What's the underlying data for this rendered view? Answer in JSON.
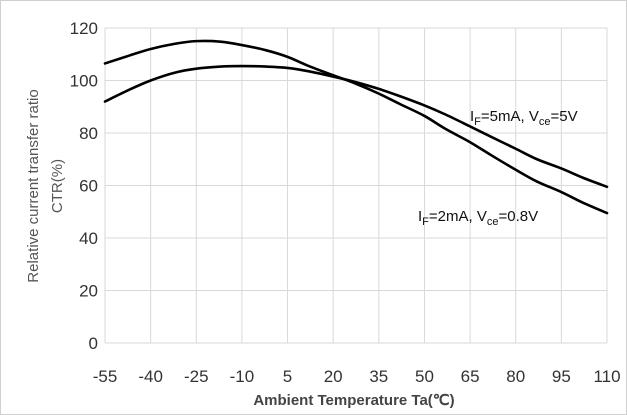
{
  "chart_data": {
    "type": "line",
    "xlabel": "Ambient Temperature Ta(℃)",
    "ylabel_lines": [
      "Relative current transfer ratio",
      "CTR(%)"
    ],
    "x_ticks": [
      -55,
      -40,
      -25,
      -10,
      5,
      20,
      35,
      50,
      65,
      80,
      95,
      110
    ],
    "y_ticks": [
      0,
      20,
      40,
      60,
      80,
      100,
      120
    ],
    "xlim": [
      -55,
      110
    ],
    "ylim": [
      0,
      120
    ],
    "grid": true,
    "series": [
      {
        "name": "IF=5mA, Vce=5V",
        "label": {
          "main1": "I",
          "sub1": "F",
          "main2": "=5mA,  V",
          "sub2": "ce",
          "main3": "=5V"
        },
        "points": [
          [
            -55,
            92
          ],
          [
            -47,
            96.5
          ],
          [
            -40,
            100
          ],
          [
            -32,
            103
          ],
          [
            -25,
            104.5
          ],
          [
            -17,
            105.3
          ],
          [
            -10,
            105.5
          ],
          [
            -2,
            105.3
          ],
          [
            5,
            104.8
          ],
          [
            12,
            103.5
          ],
          [
            20,
            101.5
          ],
          [
            27,
            99.5
          ],
          [
            35,
            96.8
          ],
          [
            42,
            94
          ],
          [
            50,
            90.5
          ],
          [
            57,
            87
          ],
          [
            65,
            82.5
          ],
          [
            72,
            78.5
          ],
          [
            80,
            74
          ],
          [
            87,
            70
          ],
          [
            95,
            66.5
          ],
          [
            102,
            63
          ],
          [
            110,
            59.5
          ]
        ]
      },
      {
        "name": "IF=2mA, Vce=0.8V",
        "label": {
          "main1": "I",
          "sub1": "F",
          "main2": "=2mA,  V",
          "sub2": "ce",
          "main3": "=0.8V"
        },
        "points": [
          [
            -55,
            106.5
          ],
          [
            -47,
            109.5
          ],
          [
            -40,
            112
          ],
          [
            -32,
            114
          ],
          [
            -25,
            115
          ],
          [
            -17,
            114.8
          ],
          [
            -10,
            113.5
          ],
          [
            -2,
            111.5
          ],
          [
            5,
            109
          ],
          [
            12,
            105.5
          ],
          [
            20,
            102
          ],
          [
            27,
            99
          ],
          [
            35,
            95
          ],
          [
            42,
            91
          ],
          [
            50,
            86.5
          ],
          [
            57,
            81.5
          ],
          [
            65,
            76.5
          ],
          [
            72,
            71.5
          ],
          [
            80,
            66
          ],
          [
            87,
            61.5
          ],
          [
            95,
            57.5
          ],
          [
            102,
            53.5
          ],
          [
            110,
            49.5
          ]
        ]
      }
    ]
  }
}
